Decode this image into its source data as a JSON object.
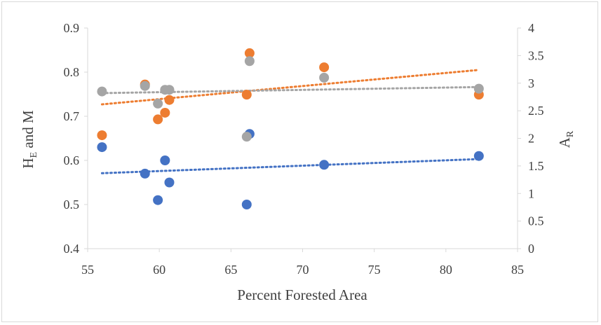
{
  "chart_data": {
    "type": "scatter",
    "xlabel": "Percent Forested Area",
    "ylabel_left": {
      "main": "H",
      "sub": "E",
      "tail": " and M"
    },
    "ylabel_right": {
      "main": "A",
      "sub": "R"
    },
    "xlim": [
      55,
      85
    ],
    "ylim_left": [
      0.4,
      0.9
    ],
    "ylim_right": [
      0,
      4
    ],
    "x_ticks": [
      "55",
      "60",
      "65",
      "70",
      "75",
      "80",
      "85"
    ],
    "y_left_ticks": [
      "0.4",
      "0.5",
      "0.6",
      "0.7",
      "0.8",
      "0.9"
    ],
    "y_right_ticks": [
      "0",
      "0.5",
      "1",
      "1.5",
      "2",
      "2.5",
      "3",
      "3.5",
      "4"
    ],
    "grid": false,
    "legend": "none",
    "series": [
      {
        "axis": "left",
        "color": "#4472c4",
        "points": [
          {
            "x": 56.0,
            "y": 0.63
          },
          {
            "x": 59.0,
            "y": 0.57
          },
          {
            "x": 59.9,
            "y": 0.51
          },
          {
            "x": 60.4,
            "y": 0.6
          },
          {
            "x": 60.7,
            "y": 0.55
          },
          {
            "x": 66.1,
            "y": 0.5
          },
          {
            "x": 66.3,
            "y": 0.66
          },
          {
            "x": 71.5,
            "y": 0.59
          },
          {
            "x": 82.3,
            "y": 0.61
          }
        ],
        "trend": {
          "x0": 56.0,
          "y0": 0.571,
          "x1": 82.3,
          "y1": 0.603
        }
      },
      {
        "axis": "left",
        "color": "#ed7d31",
        "points": [
          {
            "x": 56.0,
            "y": 0.657
          },
          {
            "x": 59.0,
            "y": 0.772
          },
          {
            "x": 59.9,
            "y": 0.693
          },
          {
            "x": 60.4,
            "y": 0.708
          },
          {
            "x": 60.7,
            "y": 0.737
          },
          {
            "x": 66.1,
            "y": 0.749
          },
          {
            "x": 66.3,
            "y": 0.843
          },
          {
            "x": 71.5,
            "y": 0.811
          },
          {
            "x": 82.3,
            "y": 0.749
          }
        ],
        "trend": {
          "x0": 56.0,
          "y0": 0.727,
          "x1": 82.3,
          "y1": 0.805
        }
      },
      {
        "axis": "right",
        "color": "#a5a5a5",
        "points": [
          {
            "x": 56.0,
            "y": 2.85
          },
          {
            "x": 59.0,
            "y": 2.95
          },
          {
            "x": 59.9,
            "y": 2.63
          },
          {
            "x": 60.4,
            "y": 2.88
          },
          {
            "x": 60.7,
            "y": 2.88
          },
          {
            "x": 66.1,
            "y": 2.03
          },
          {
            "x": 66.3,
            "y": 3.4
          },
          {
            "x": 71.5,
            "y": 3.1
          },
          {
            "x": 82.3,
            "y": 2.9
          }
        ],
        "trend": {
          "x0": 56.0,
          "y0": 2.82,
          "x1": 82.3,
          "y1": 2.93
        }
      }
    ]
  }
}
